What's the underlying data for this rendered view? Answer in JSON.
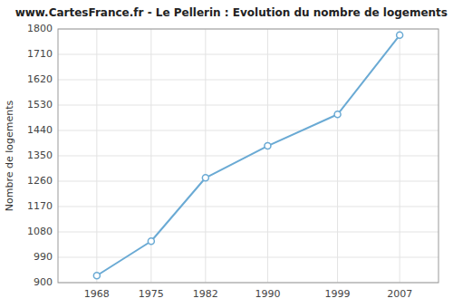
{
  "chart_data": {
    "type": "line",
    "title": "www.CartesFrance.fr - Le Pellerin : Evolution du nombre de logements",
    "y_label": "Nombre de logements",
    "x": [
      1968,
      1975,
      1982,
      1990,
      1999,
      2007
    ],
    "values": [
      925,
      1047,
      1272,
      1385,
      1497,
      1778
    ],
    "xlim": [
      1963,
      2012
    ],
    "xticks": [
      1968,
      1975,
      1982,
      1990,
      1999,
      2007
    ],
    "ylim": [
      900,
      1800
    ],
    "yticks": [
      900,
      990,
      1080,
      1170,
      1260,
      1350,
      1440,
      1530,
      1620,
      1710,
      1800
    ],
    "grid": true,
    "color": "#6aaad4",
    "marker": "circle"
  }
}
